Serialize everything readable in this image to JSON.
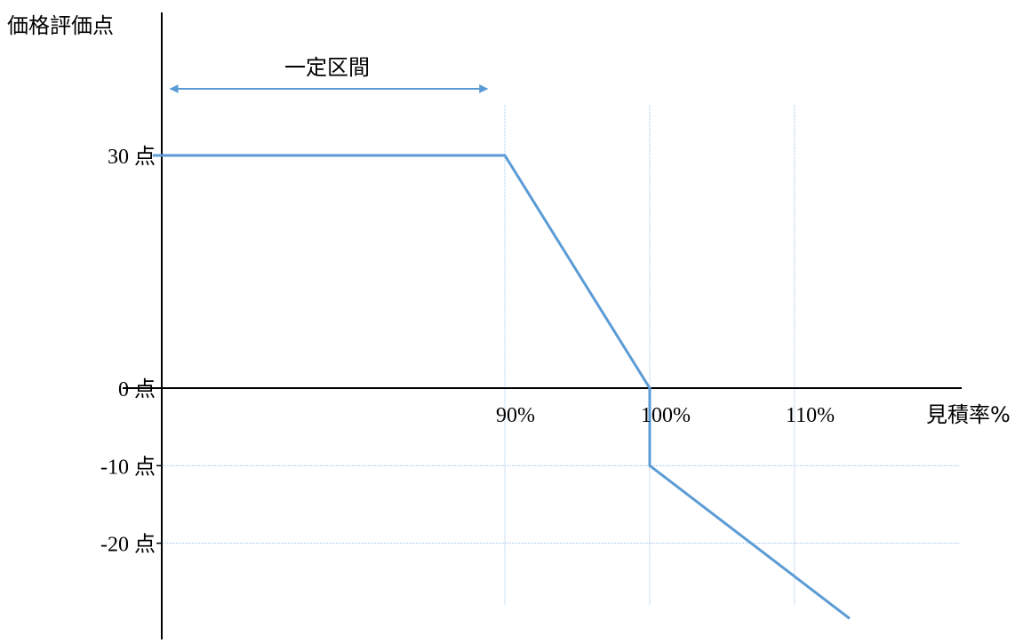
{
  "chart_data": {
    "type": "line",
    "ylabel": "価格評価点",
    "xlabel": "見積率%",
    "x_ticks": [
      {
        "value": 90,
        "label": "90%"
      },
      {
        "value": 100,
        "label": "100%"
      },
      {
        "value": 110,
        "label": "110%"
      }
    ],
    "y_ticks": [
      {
        "value": 30,
        "label": "30 点"
      },
      {
        "value": 0,
        "label": "0 点"
      },
      {
        "value": -10,
        "label": "-10 点"
      },
      {
        "value": -20,
        "label": "-20 点"
      }
    ],
    "xlim": [
      65.7,
      122
    ],
    "ylim": [
      -29.7,
      38
    ],
    "series": [
      {
        "points": [
          {
            "x": 65.7,
            "y": 30
          },
          {
            "x": 90,
            "y": 30
          },
          {
            "x": 100,
            "y": 0
          },
          {
            "x": 100,
            "y": -10
          },
          {
            "x": 113.8,
            "y": -29.7
          }
        ]
      }
    ],
    "annotation": {
      "label": "一定区間",
      "x_start": 66.3,
      "x_end": 89.4
    },
    "grid": true,
    "colors": {
      "line": "#5b9bd5",
      "grid": "#9dc3e6",
      "axis": "#000000"
    }
  }
}
